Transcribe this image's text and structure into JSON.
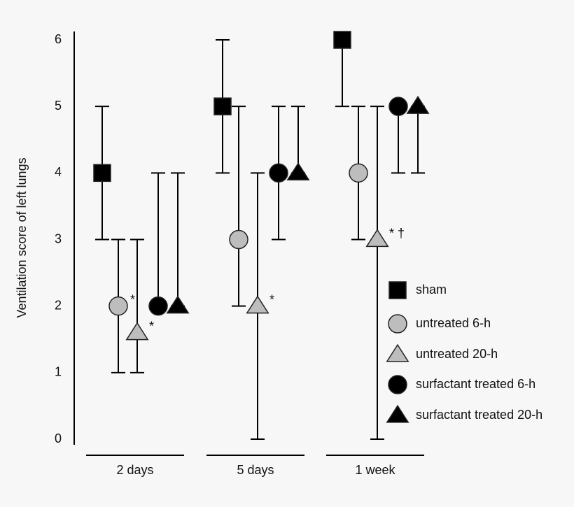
{
  "chart_data": {
    "type": "errorbar",
    "ylabel": "Ventilation score of left lungs",
    "categories": [
      "2 days",
      "5 days",
      "1 week"
    ],
    "ylim": [
      0,
      6
    ],
    "yticks": [
      0,
      1,
      2,
      3,
      4,
      5,
      6
    ],
    "series": [
      {
        "name": "sham",
        "color": "#000000",
        "marker": "square",
        "values": [
          4,
          5,
          6
        ],
        "low": [
          3,
          4,
          5
        ],
        "high": [
          5,
          6,
          6
        ],
        "annotations": [
          null,
          null,
          null
        ]
      },
      {
        "name": "untreated 6-h",
        "color": "#bdbdbd",
        "marker": "circle",
        "values": [
          2,
          3,
          4
        ],
        "low": [
          1,
          2,
          3
        ],
        "high": [
          3,
          5,
          5
        ],
        "annotations": [
          "*",
          null,
          null
        ]
      },
      {
        "name": "untreated 20-h",
        "color": "#bdbdbd",
        "marker": "triangle",
        "values": [
          1.6,
          2,
          3
        ],
        "low": [
          1,
          0,
          0
        ],
        "high": [
          3,
          4,
          5
        ],
        "annotations": [
          "*",
          "*",
          "* †"
        ]
      },
      {
        "name": "surfactant treated 6-h",
        "color": "#000000",
        "marker": "circle",
        "values": [
          2,
          4,
          5
        ],
        "low": [
          2,
          3,
          4
        ],
        "high": [
          4,
          5,
          5
        ],
        "annotations": [
          null,
          null,
          null
        ]
      },
      {
        "name": "surfactant treated 20-h",
        "color": "#000000",
        "marker": "triangle",
        "values": [
          2,
          4,
          5
        ],
        "low": [
          2,
          4,
          4
        ],
        "high": [
          4,
          5,
          5
        ],
        "annotations": [
          null,
          null,
          null
        ]
      }
    ]
  }
}
